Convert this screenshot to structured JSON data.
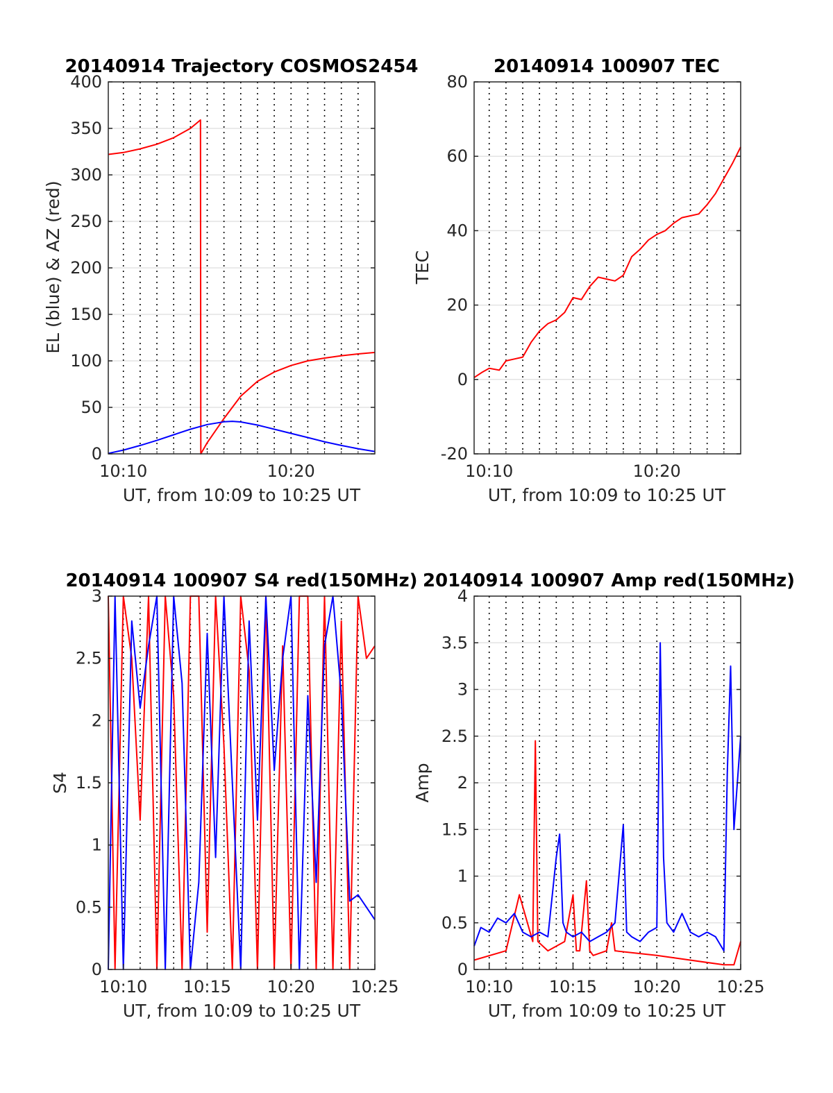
{
  "chart_data": [
    {
      "id": "trajectory",
      "type": "line",
      "title": "20140914 Trajectory COSMOS2454",
      "xlabel": "UT, from 10:09 to 10:25 UT",
      "ylabel": "EL (blue) & AZ (red)",
      "xlim": [
        9.1,
        25.0
      ],
      "ylim": [
        0,
        400
      ],
      "yticks": [
        0,
        50,
        100,
        150,
        200,
        250,
        300,
        350,
        400
      ],
      "xticks": [
        10,
        20
      ],
      "xtick_labels": [
        "10:10",
        "10:20"
      ],
      "grid": "on",
      "series": [
        {
          "name": "AZ (red)",
          "color": "#ff0000",
          "x": [
            9.1,
            10,
            11,
            12,
            13,
            14,
            14.6,
            14.62,
            15,
            16,
            17,
            18,
            19,
            20,
            21,
            22,
            23,
            24,
            25
          ],
          "y": [
            322,
            324,
            328,
            333,
            340,
            350,
            359,
            0,
            12,
            38,
            62,
            78,
            88,
            95,
            100,
            103,
            105.5,
            107.5,
            109
          ]
        },
        {
          "name": "EL (blue)",
          "color": "#0000ff",
          "x": [
            9.1,
            10,
            11,
            12,
            13,
            14,
            15,
            16,
            16.5,
            17,
            18,
            19,
            20,
            21,
            22,
            23,
            24,
            25
          ],
          "y": [
            0.5,
            4,
            9,
            14.5,
            20.5,
            26.5,
            31.5,
            34.5,
            35,
            34.3,
            31,
            26.5,
            22,
            17.5,
            13,
            9,
            5.5,
            2.5
          ]
        }
      ]
    },
    {
      "id": "tec",
      "type": "line",
      "title": "20140914 100907 TEC",
      "xlabel": "UT, from 10:09 to 10:25 UT",
      "ylabel": "TEC",
      "xlim": [
        9.1,
        25.0
      ],
      "ylim": [
        -20,
        80
      ],
      "yticks": [
        -20,
        0,
        20,
        40,
        60,
        80
      ],
      "xticks": [
        10,
        20
      ],
      "xtick_labels": [
        "10:10",
        "10:20"
      ],
      "grid": "on",
      "series": [
        {
          "name": "TEC",
          "color": "#ff0000",
          "x": [
            9.1,
            9.6,
            10.0,
            10.6,
            11.0,
            11.5,
            12.0,
            12.5,
            13.0,
            13.5,
            14.0,
            14.5,
            15.0,
            15.5,
            16.0,
            16.5,
            17.0,
            17.5,
            18.0,
            18.5,
            19.0,
            19.5,
            20.0,
            20.5,
            21.0,
            21.5,
            22.0,
            22.5,
            23.0,
            23.5,
            24.0,
            24.5,
            25.0
          ],
          "y": [
            0.5,
            2,
            3,
            2.5,
            5,
            5.5,
            6,
            10,
            13,
            15,
            16,
            18,
            22,
            21.5,
            25,
            27.5,
            27,
            26.5,
            28,
            33,
            35,
            37.5,
            39,
            40,
            42,
            43.5,
            44,
            44.5,
            47,
            50,
            54,
            58,
            62.5
          ]
        }
      ]
    },
    {
      "id": "s4",
      "type": "line",
      "title": "20140914 100907 S4 red(150MHz)",
      "xlabel": "UT, from 10:09 to 10:25 UT",
      "ylabel": "S4",
      "xlim": [
        9.1,
        25.0
      ],
      "ylim": [
        0,
        3
      ],
      "yticks": [
        0,
        0.5,
        1,
        1.5,
        2,
        2.5,
        3
      ],
      "xticks": [
        10,
        15,
        20,
        25
      ],
      "xtick_labels": [
        "10:10",
        "10:15",
        "10:20",
        "10:25"
      ],
      "grid": "on",
      "series": [
        {
          "name": "red",
          "color": "#ff0000",
          "x": [
            9.1,
            9.5,
            10.0,
            10.5,
            11.0,
            11.5,
            12.0,
            12.5,
            13.0,
            13.5,
            14.0,
            14.5,
            15.0,
            15.5,
            16.0,
            16.5,
            17.0,
            17.5,
            18.0,
            18.5,
            19.0,
            19.5,
            20.0,
            20.5,
            21.0,
            21.5,
            22.0,
            22.5,
            23.0,
            23.5,
            24.0,
            24.5,
            25.0
          ],
          "y": [
            3,
            0,
            3,
            2.5,
            1.2,
            3,
            0,
            3,
            2.2,
            0,
            3,
            3,
            0.3,
            3,
            1.8,
            0,
            3,
            2.4,
            0,
            3,
            0,
            2.6,
            0,
            3,
            3,
            0,
            3,
            0,
            2.8,
            0,
            3,
            2.5,
            2.6
          ]
        },
        {
          "name": "blue",
          "color": "#0000ff",
          "x": [
            9.1,
            9.5,
            10.0,
            10.5,
            11.0,
            11.5,
            12.0,
            12.5,
            13.0,
            13.5,
            14.0,
            14.5,
            15.0,
            15.5,
            16.0,
            16.5,
            17.0,
            17.5,
            18.0,
            18.5,
            19.0,
            19.5,
            20.0,
            20.5,
            21.0,
            21.5,
            22.0,
            22.5,
            23.0,
            23.5,
            24.0,
            24.5,
            25.0
          ],
          "y": [
            0,
            3,
            0,
            2.8,
            2.1,
            2.6,
            3,
            0,
            3,
            2.3,
            0,
            0.7,
            2.7,
            0.9,
            3,
            1.5,
            0,
            2.8,
            1.2,
            3,
            1.6,
            2.5,
            3,
            0,
            2.2,
            0.7,
            2.6,
            3,
            2.2,
            0.55,
            0.6,
            0.5,
            0.4
          ]
        }
      ]
    },
    {
      "id": "amp",
      "type": "line",
      "title": "20140914 100907 Amp red(150MHz)",
      "xlabel": "UT, from 10:09 to 10:25 UT",
      "ylabel": "Amp",
      "xlim": [
        9.1,
        25.0
      ],
      "ylim": [
        0,
        4
      ],
      "yticks": [
        0,
        0.5,
        1,
        1.5,
        2,
        2.5,
        3,
        3.5,
        4
      ],
      "xticks": [
        10,
        15,
        20,
        25
      ],
      "xtick_labels": [
        "10:10",
        "10:15",
        "10:20",
        "10:25"
      ],
      "grid": "on",
      "series": [
        {
          "name": "red",
          "color": "#ff0000",
          "x": [
            9.1,
            11.0,
            11.8,
            12.6,
            12.75,
            12.9,
            13.5,
            14.5,
            15.0,
            15.2,
            15.4,
            15.8,
            16.0,
            16.2,
            17.0,
            17.3,
            17.5,
            20.0,
            24.0,
            24.6,
            25.0
          ],
          "y": [
            0.1,
            0.2,
            0.8,
            0.3,
            2.45,
            0.3,
            0.2,
            0.3,
            0.8,
            0.2,
            0.2,
            0.95,
            0.2,
            0.15,
            0.2,
            0.5,
            0.2,
            0.15,
            0.05,
            0.05,
            0.3
          ]
        },
        {
          "name": "blue",
          "color": "#0000ff",
          "x": [
            9.1,
            9.5,
            10.0,
            10.5,
            11.0,
            11.5,
            12.0,
            12.5,
            13.0,
            13.5,
            14.0,
            14.2,
            14.4,
            14.6,
            15.0,
            15.5,
            16.0,
            16.5,
            17.0,
            17.5,
            18.0,
            18.2,
            18.5,
            19.0,
            19.5,
            20.0,
            20.2,
            20.4,
            20.6,
            21.0,
            21.5,
            22.0,
            22.5,
            23.0,
            23.5,
            24.0,
            24.2,
            24.4,
            24.6,
            24.8,
            25.0
          ],
          "y": [
            0.25,
            0.45,
            0.4,
            0.55,
            0.5,
            0.6,
            0.4,
            0.35,
            0.4,
            0.35,
            1.2,
            1.45,
            0.5,
            0.4,
            0.35,
            0.4,
            0.3,
            0.35,
            0.4,
            0.5,
            1.55,
            0.4,
            0.35,
            0.3,
            0.4,
            0.45,
            3.5,
            1.2,
            0.5,
            0.4,
            0.6,
            0.4,
            0.35,
            0.4,
            0.35,
            0.2,
            2.1,
            3.25,
            1.5,
            2.0,
            2.5
          ]
        }
      ]
    }
  ]
}
